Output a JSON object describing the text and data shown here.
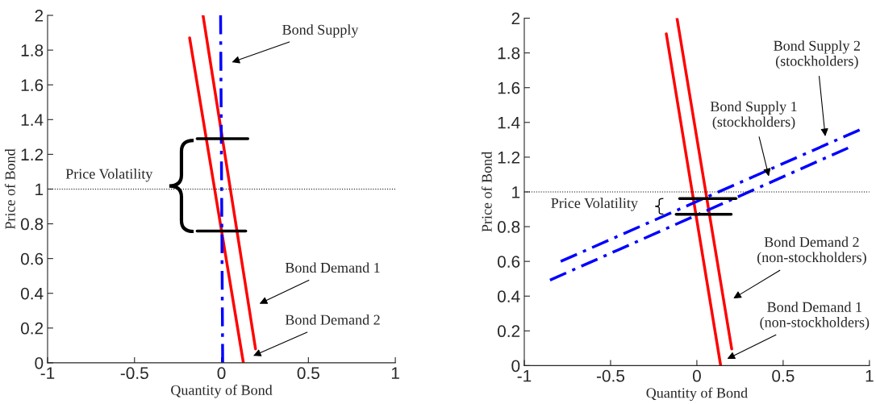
{
  "chart_data": [
    {
      "type": "line",
      "xlabel": "Quantity of Bond",
      "ylabel": "Price of Bond",
      "xlim": [
        -1,
        1
      ],
      "ylim": [
        0,
        2
      ],
      "xticks": [
        -1,
        -0.5,
        0,
        0.5,
        1
      ],
      "yticks": [
        0,
        0.2,
        0.4,
        0.6,
        0.8,
        1,
        1.2,
        1.4,
        1.6,
        1.8,
        2
      ],
      "series": [
        {
          "color": "#ff0000",
          "line_style": "solid",
          "x": [
            -0.106,
            0.196
          ],
          "values": [
            2,
            0.08
          ]
        },
        {
          "color": "#ff0000",
          "line_style": "solid",
          "x": [
            -0.183,
            0.126
          ],
          "values": [
            1.87,
            0
          ]
        },
        {
          "color": "#0000ff",
          "line_style": "dashdot",
          "x": [
            -0.005,
            0.007
          ],
          "values": [
            2,
            0
          ]
        },
        {
          "color": "#000000",
          "line_style": "solid",
          "x": [
            -0.14,
            0.152
          ],
          "values": [
            1.29,
            1.29
          ]
        },
        {
          "color": "#000000",
          "line_style": "solid",
          "x": [
            -0.14,
            0.14
          ],
          "values": [
            0.758,
            0.758
          ]
        }
      ],
      "ref_lines": [
        {
          "axis": "y",
          "value": 1,
          "color": "#000000",
          "line_style": "dotted"
        }
      ],
      "annotations": [
        "Bond Supply",
        "Bond Demand 1",
        "Bond Demand 2",
        "Price Volatility"
      ]
    },
    {
      "type": "line",
      "xlabel": "Quantity of Bond",
      "ylabel": "Price of Bond",
      "xlim": [
        -1,
        1
      ],
      "ylim": [
        0,
        2
      ],
      "xticks": [
        -1,
        -0.5,
        0,
        0.5,
        1
      ],
      "yticks": [
        0,
        0.2,
        0.4,
        0.6,
        0.8,
        1,
        1.2,
        1.4,
        1.6,
        1.8,
        2
      ],
      "series": [
        {
          "color": "#ff0000",
          "line_style": "solid",
          "x": [
            -0.115,
            0.202
          ],
          "values": [
            2,
            0.096
          ]
        },
        {
          "color": "#ff0000",
          "line_style": "solid",
          "x": [
            -0.177,
            0.138
          ],
          "values": [
            1.91,
            0
          ]
        },
        {
          "color": "#0000ff",
          "line_style": "dashdot",
          "x": [
            -0.789,
            0.943
          ],
          "values": [
            0.6,
            1.357
          ]
        },
        {
          "color": "#0000ff",
          "line_style": "dashdot",
          "x": [
            -0.851,
            0.876
          ],
          "values": [
            0.492,
            1.253
          ]
        },
        {
          "color": "#000000",
          "line_style": "solid",
          "x": [
            -0.1,
            0.227
          ],
          "values": [
            0.962,
            0.962
          ]
        },
        {
          "color": "#000000",
          "line_style": "solid",
          "x": [
            -0.12,
            0.199
          ],
          "values": [
            0.871,
            0.871
          ]
        }
      ],
      "ref_lines": [
        {
          "axis": "y",
          "value": 1,
          "color": "#000000",
          "line_style": "dotted"
        }
      ],
      "annotations": [
        "Bond Supply 1\n(stockholders)",
        "Bond Supply 2\n(stockholders)",
        "Bond Demand 2\n(non-stockholders)",
        "Bond Demand 1\n(non-stockholders)",
        "Price Volatility"
      ]
    }
  ]
}
